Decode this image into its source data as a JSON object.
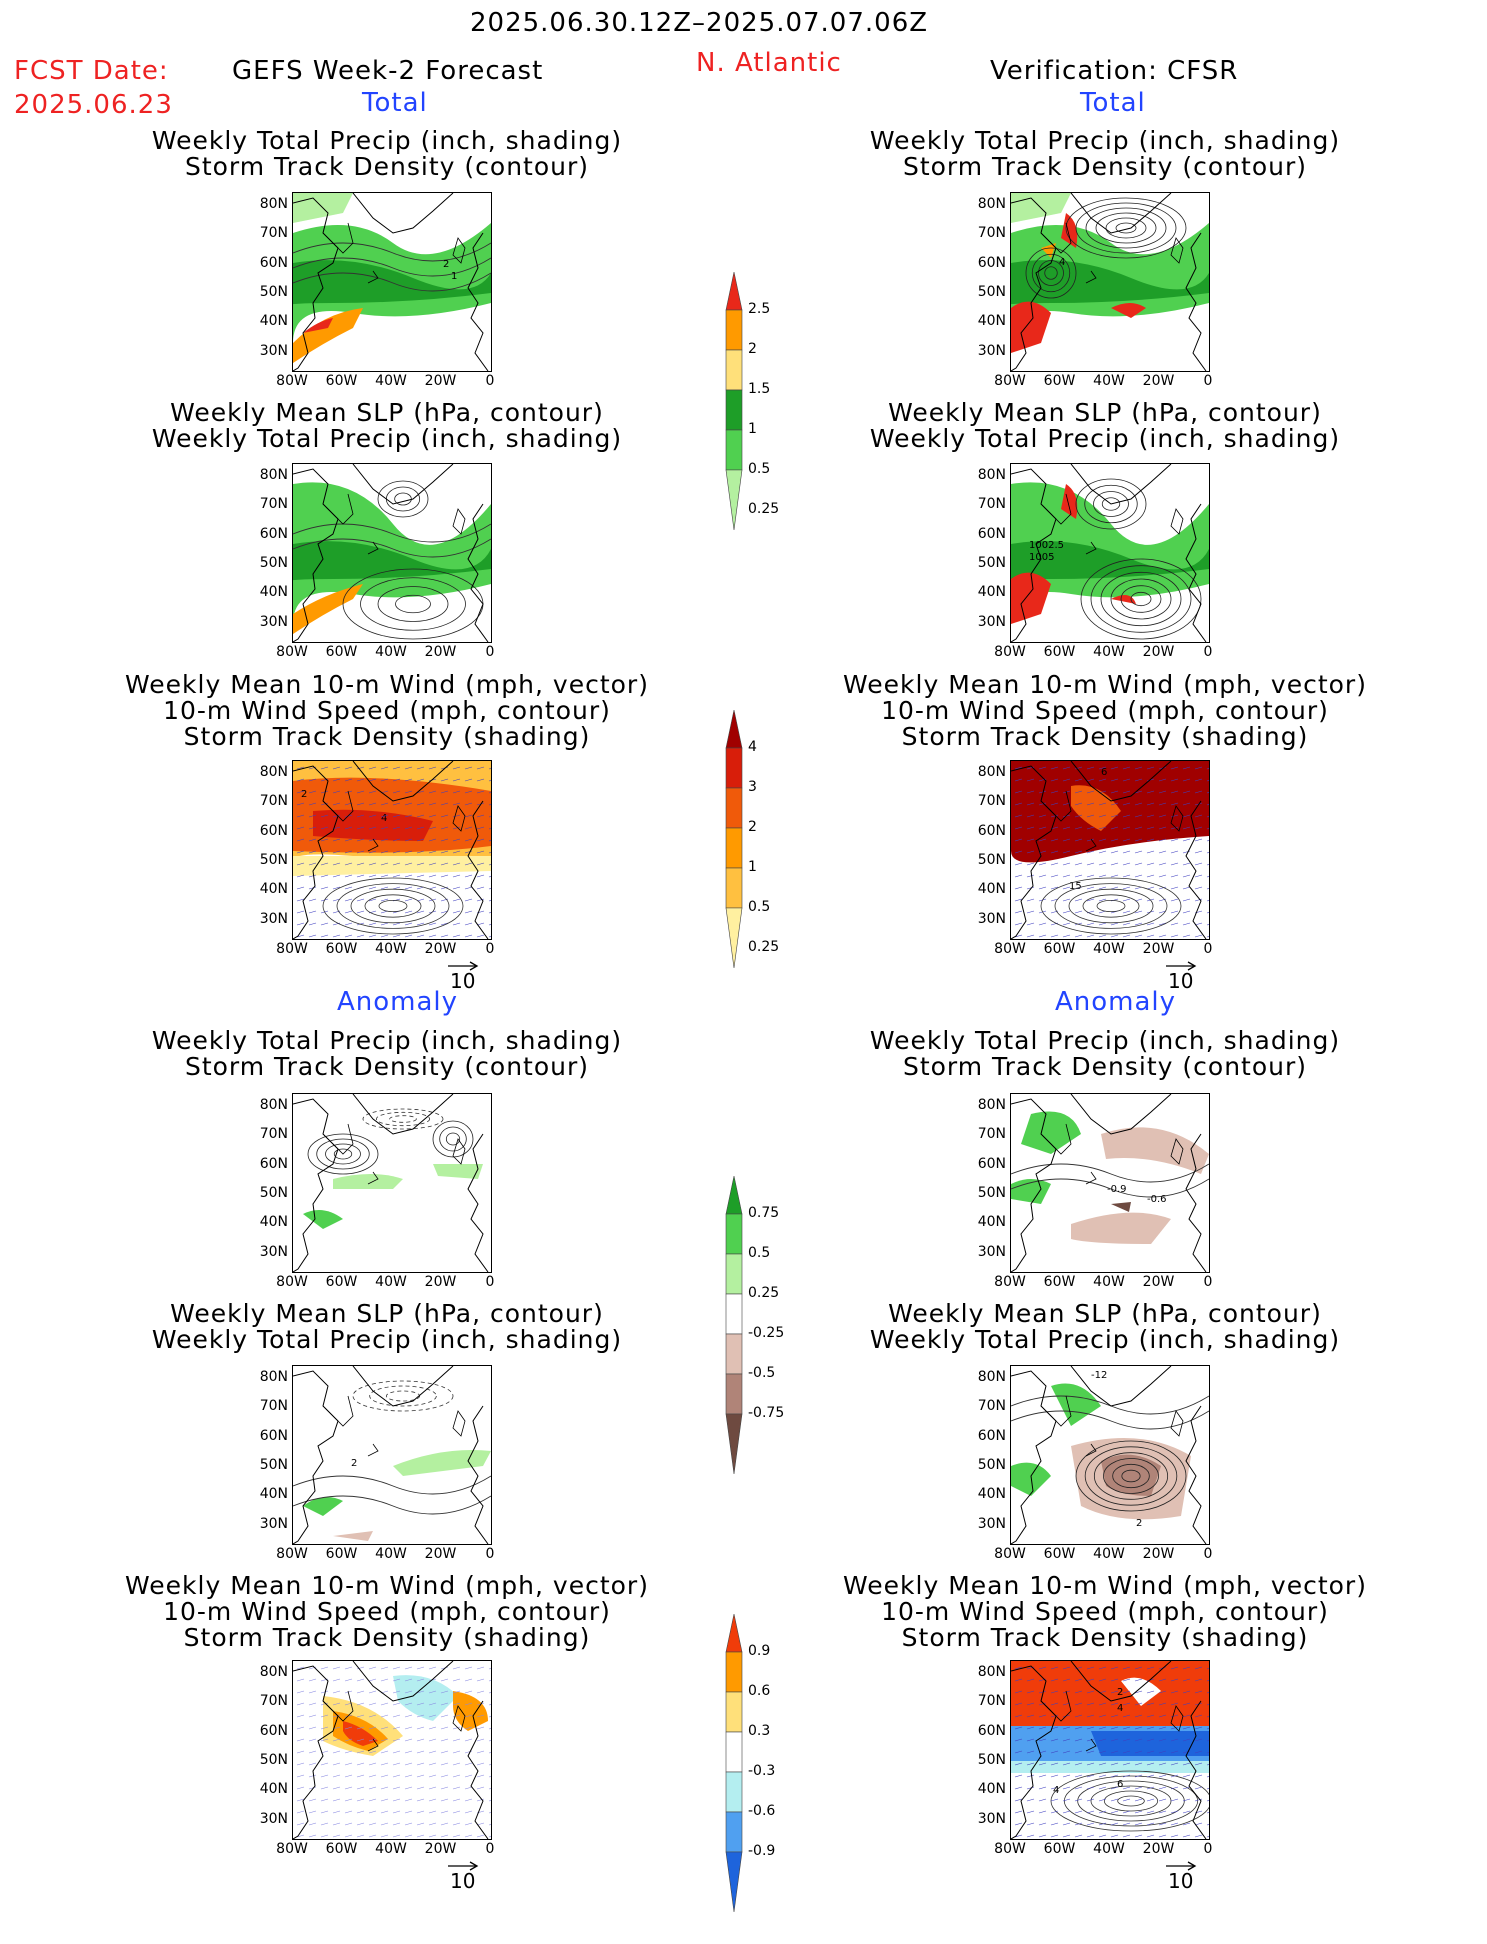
{
  "header": {
    "date_range": "2025.06.30.12Z–2025.07.07.06Z",
    "fcst_label": "FCST Date:",
    "fcst_date": "2025.06.23",
    "left_title": "GEFS Week-2 Forecast",
    "region": "N. Atlantic",
    "right_title": "Verification: CFSR"
  },
  "sections": {
    "total": "Total",
    "anomaly": "Anomaly"
  },
  "titles": {
    "precip_track": [
      "Weekly Total Precip (inch, shading)",
      "Storm Track Density (contour)"
    ],
    "slp_precip": [
      "Weekly Mean SLP (hPa, contour)",
      "Weekly Total Precip (inch, shading)"
    ],
    "wind": [
      "Weekly Mean 10-m Wind (mph, vector)",
      "10-m Wind Speed (mph, contour)",
      "Storm Track Density (shading)"
    ]
  },
  "axes": {
    "y_labels": [
      "80N",
      "70N",
      "60N",
      "50N",
      "40N",
      "30N"
    ],
    "x_labels": [
      "80W",
      "60W",
      "40W",
      "20W",
      "0"
    ]
  },
  "vector_ref": "10",
  "colorbars": {
    "precip_total": {
      "labels": [
        "2.5",
        "2",
        "1.5",
        "1",
        "0.5",
        "0.25"
      ],
      "colors": [
        "#e8281a",
        "#ff9a00",
        "#ffe07a",
        "#1e9e28",
        "#50d050",
        "#b4f0a0"
      ]
    },
    "storm_total": {
      "labels": [
        "4",
        "3",
        "2",
        "1",
        "0.5",
        "0.25"
      ],
      "colors": [
        "#a00000",
        "#d81e0a",
        "#f05a0a",
        "#ff9a00",
        "#ffc040",
        "#fff0a0"
      ]
    },
    "precip_anom": {
      "labels": [
        "0.75",
        "0.5",
        "0.25",
        "-0.25",
        "-0.5",
        "-0.75"
      ],
      "colors": [
        "#1e9e28",
        "#50d050",
        "#b4f0a0",
        "#ffffff",
        "#e0c0b4",
        "#b08478",
        "#6e4a40"
      ]
    },
    "storm_anom": {
      "labels": [
        "0.9",
        "0.6",
        "0.3",
        "-0.3",
        "-0.6",
        "-0.9"
      ],
      "colors": [
        "#f03c0a",
        "#ff9a00",
        "#ffe07a",
        "#ffffff",
        "#b4eef0",
        "#50a0f0",
        "#1e64dc"
      ]
    }
  },
  "contour_labels": {
    "fc_precip_total": [
      "2",
      "1"
    ],
    "obs_precip_total": [
      "4"
    ],
    "obs_slp_total": [
      "1002.5",
      "1005"
    ],
    "fc_wind_total": [
      "2",
      "4"
    ],
    "obs_wind_total": [
      "6",
      "15"
    ],
    "fc_slp_anom": [
      "2"
    ],
    "obs_precip_anom": [
      "-0.9",
      "-0.6"
    ],
    "obs_slp_anom": [
      "-12",
      "2"
    ],
    "obs_wind_anom": [
      "2",
      "4",
      "6",
      "4"
    ]
  }
}
